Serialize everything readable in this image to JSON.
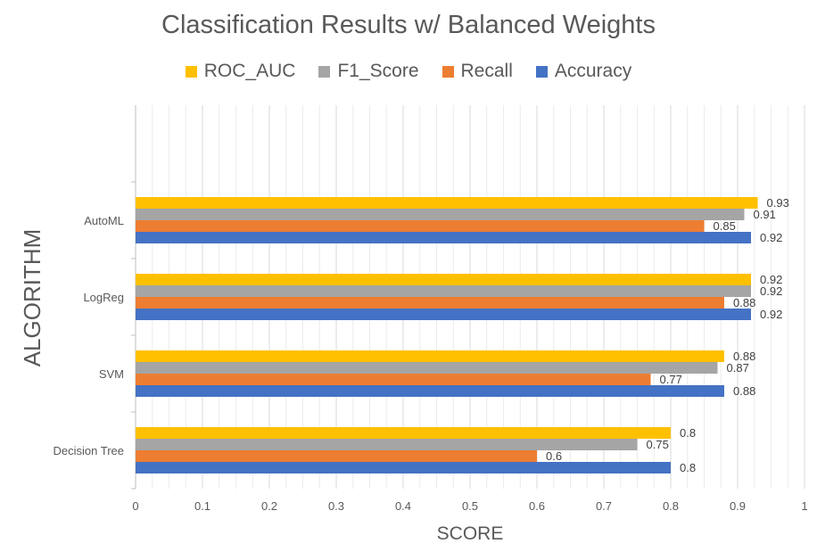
{
  "chart_data": {
    "type": "bar",
    "orientation": "horizontal",
    "title": "Classification Results w/ Balanced Weights",
    "xlabel": "SCORE",
    "ylabel": "ALGORITHM",
    "categories": [
      "AutoML",
      "LogReg",
      "SVM",
      "Decision Tree"
    ],
    "series": [
      {
        "name": "ROC_AUC",
        "color": "#FFC000",
        "values": [
          0.93,
          0.92,
          0.88,
          0.8
        ]
      },
      {
        "name": "F1_Score",
        "color": "#A5A5A5",
        "values": [
          0.91,
          0.92,
          0.87,
          0.75
        ]
      },
      {
        "name": "Recall",
        "color": "#ED7D31",
        "values": [
          0.85,
          0.88,
          0.77,
          0.6
        ]
      },
      {
        "name": "Accuracy",
        "color": "#4472C4",
        "values": [
          0.92,
          0.92,
          0.88,
          0.8
        ]
      }
    ],
    "xlim": [
      0,
      1
    ],
    "xticks": [
      "0",
      "0.1",
      "0.2",
      "0.3",
      "0.4",
      "0.5",
      "0.6",
      "0.7",
      "0.8",
      "0.9",
      "1"
    ],
    "grid": true,
    "legend_position": "top",
    "data_labels": true
  }
}
